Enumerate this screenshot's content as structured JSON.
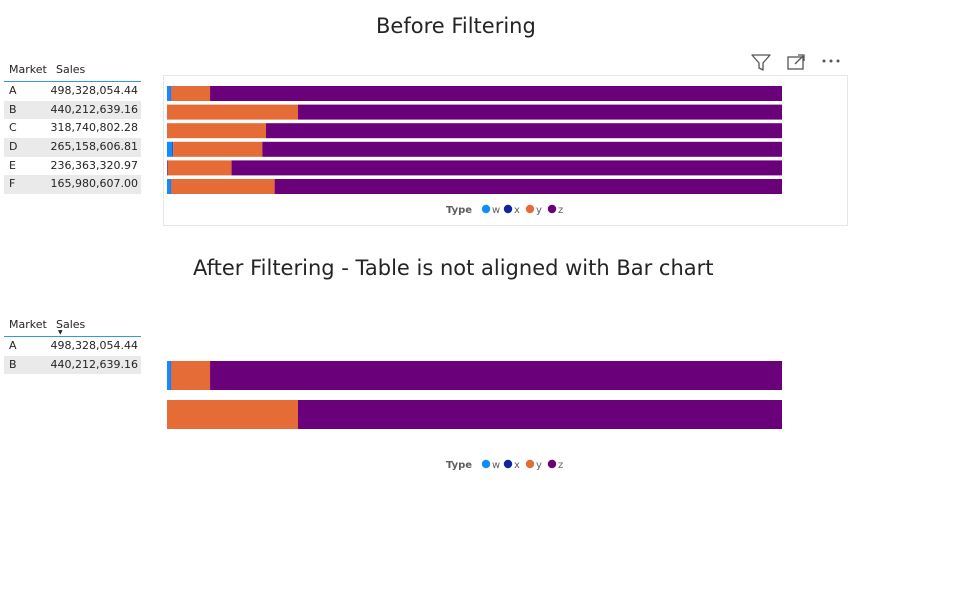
{
  "titles": {
    "before": "Before Filtering",
    "after": "After Filtering - Table is not aligned with Bar chart"
  },
  "table_before": {
    "columns": [
      "Market",
      "Sales"
    ],
    "rows": [
      {
        "market": "A",
        "sales": "498,328,054.44"
      },
      {
        "market": "B",
        "sales": "440,212,639.16"
      },
      {
        "market": "C",
        "sales": "318,740,802.28"
      },
      {
        "market": "D",
        "sales": "265,158,606.81"
      },
      {
        "market": "E",
        "sales": "236,363,320.97"
      },
      {
        "market": "F",
        "sales": "165,980,607.00"
      }
    ]
  },
  "table_after": {
    "columns": [
      "Market",
      "Sales"
    ],
    "sort_indicator": "descending",
    "rows": [
      {
        "market": "A",
        "sales": "498,328,054.44"
      },
      {
        "market": "B",
        "sales": "440,212,639.16"
      }
    ]
  },
  "visual_header_icons": [
    "filter-icon",
    "focus-mode-icon",
    "more-options-icon"
  ],
  "colors": {
    "w": "#118dff",
    "x": "#12239e",
    "y": "#e66c37",
    "z": "#6b007b",
    "table_header_line": "#2f9ce0",
    "alt_row": "#eaeaea"
  },
  "chart_data": [
    {
      "type": "bar",
      "orientation": "horizontal",
      "stacked": "100%",
      "categories": [
        "A",
        "B",
        "C",
        "D",
        "E",
        "F"
      ],
      "series": [
        {
          "name": "w",
          "values": [
            0.6,
            0,
            0,
            0.9,
            0,
            0.6
          ]
        },
        {
          "name": "x",
          "values": [
            0.1,
            0,
            0,
            0.1,
            0.1,
            0.1
          ]
        },
        {
          "name": "y",
          "values": [
            6.3,
            21.3,
            16.1,
            14.5,
            10.4,
            16.8
          ]
        },
        {
          "name": "z",
          "values": [
            93.0,
            78.7,
            83.9,
            84.5,
            89.5,
            82.5
          ]
        }
      ],
      "legend": {
        "title": "Type",
        "position": "bottom-center",
        "entries": [
          "w",
          "x",
          "y",
          "z"
        ]
      },
      "axes_visible": false
    },
    {
      "type": "bar",
      "orientation": "horizontal",
      "stacked": "100%",
      "categories": [
        "A",
        "B"
      ],
      "series": [
        {
          "name": "w",
          "values": [
            0.6,
            0
          ]
        },
        {
          "name": "x",
          "values": [
            0.1,
            0
          ]
        },
        {
          "name": "y",
          "values": [
            6.3,
            21.3
          ]
        },
        {
          "name": "z",
          "values": [
            93.0,
            78.7
          ]
        }
      ],
      "legend": {
        "title": "Type",
        "position": "bottom-center",
        "entries": [
          "w",
          "x",
          "y",
          "z"
        ]
      },
      "axes_visible": false
    }
  ]
}
